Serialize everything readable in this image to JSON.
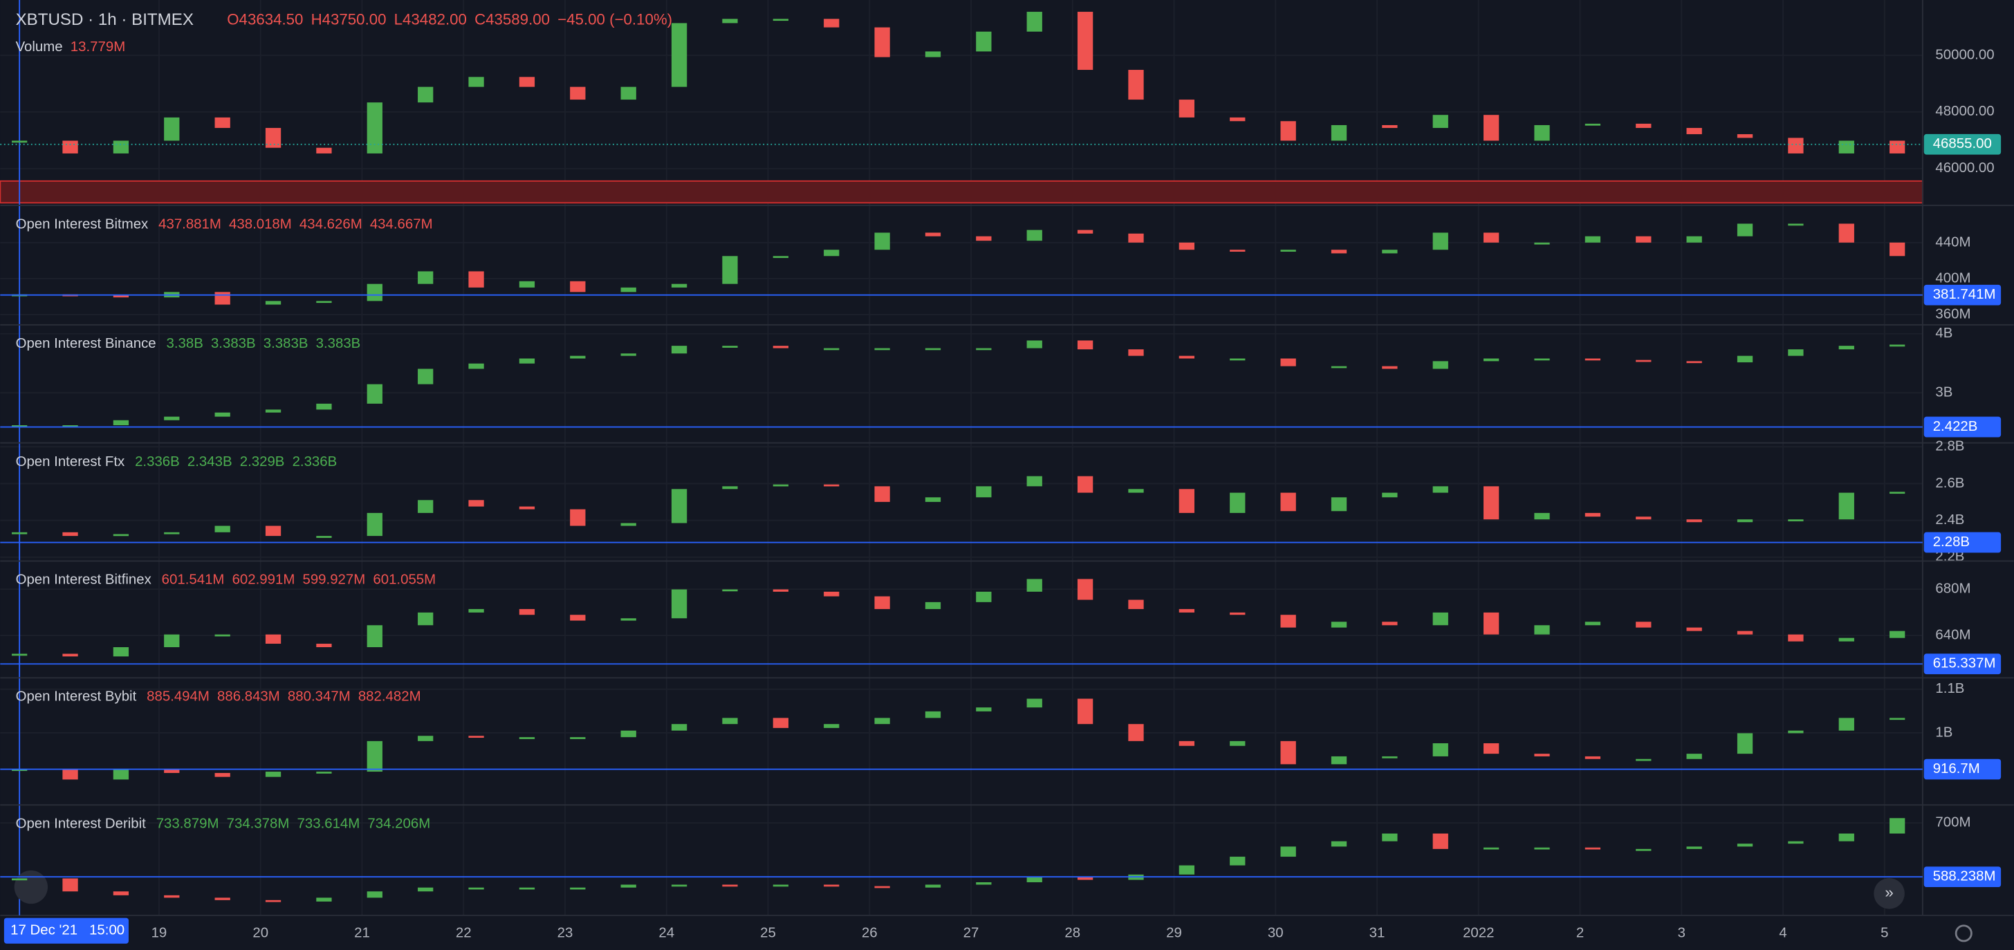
{
  "chart_data": [
    {
      "type": "candle",
      "title": "XBTUSD · 1h · BITMEX",
      "legend": [
        "O43634.50",
        "H43750.00",
        "L43482.00",
        "C43589.00",
        "−45.00 (−0.10%)"
      ],
      "legend_color": "#ef5350",
      "volume_label": "Volume",
      "volume_value": "13.779M",
      "x": [
        0,
        12,
        24,
        36,
        48,
        60,
        72,
        84,
        96,
        108,
        120,
        132,
        144,
        156,
        168,
        180,
        192,
        204,
        216,
        228,
        240,
        252,
        264,
        276,
        288,
        300,
        312,
        324,
        336,
        348,
        360,
        372,
        384,
        396,
        408,
        420,
        432,
        444
      ],
      "values": [
        46950,
        46500,
        46950,
        47770,
        47400,
        46700,
        46500,
        48300,
        48850,
        49200,
        48850,
        48400,
        48850,
        51100,
        51250,
        51250,
        50950,
        49900,
        50100,
        50800,
        51500,
        49450,
        48400,
        47770,
        47640,
        46950,
        47500,
        47400,
        47860,
        46950,
        47500,
        47550,
        47400,
        47180,
        47050,
        46500,
        46950,
        46500
      ],
      "xlim": [
        0,
        450
      ],
      "ylim": [
        44700,
        51950
      ],
      "yticks": [
        {
          "value": 46000,
          "label": "46000.00"
        },
        {
          "value": 48000,
          "label": "48000.00"
        },
        {
          "value": 50000,
          "label": "50000.00"
        }
      ],
      "last_price": {
        "value": 46855,
        "label": "46855.00"
      },
      "up_color": "#4caf50",
      "down_color": "#ef5350"
    },
    {
      "type": "candle",
      "title": "Open Interest Bitmex",
      "legend": [
        "437.881M",
        "438.018M",
        "434.626M",
        "434.667M"
      ],
      "legend_color": "#ef5350",
      "x": [
        0,
        12,
        24,
        36,
        48,
        60,
        72,
        84,
        96,
        108,
        120,
        132,
        144,
        156,
        168,
        180,
        192,
        204,
        216,
        228,
        240,
        252,
        264,
        276,
        288,
        300,
        312,
        324,
        336,
        348,
        360,
        372,
        384,
        396,
        408,
        420,
        432,
        444
      ],
      "values": [
        381.4,
        381,
        378,
        384,
        370,
        374,
        374,
        393,
        407,
        389,
        396,
        384,
        389,
        393,
        424,
        424,
        431,
        450,
        446,
        441,
        453,
        449,
        439,
        431,
        429,
        431,
        427,
        431,
        450,
        439,
        439,
        446,
        439,
        446,
        460,
        460,
        439,
        424
      ],
      "xlim": [
        0,
        450
      ],
      "ylim": [
        348.6,
        481.4
      ],
      "yticks": [
        {
          "value": 360,
          "label": "360M"
        },
        {
          "value": 400,
          "label": "400M"
        },
        {
          "value": 440,
          "label": "440M"
        }
      ],
      "ref_line": {
        "value": 381.741,
        "label": "381.741M"
      },
      "up_color": "#4caf50",
      "down_color": "#ef5350"
    },
    {
      "type": "candle",
      "title": "Open Interest Binance",
      "legend": [
        "3.38B",
        "3.383B",
        "3.383B",
        "3.383B"
      ],
      "legend_color": "#4caf50",
      "x": [
        0,
        12,
        24,
        36,
        48,
        60,
        72,
        84,
        96,
        108,
        120,
        132,
        144,
        156,
        168,
        180,
        192,
        204,
        216,
        228,
        240,
        252,
        264,
        276,
        288,
        300,
        312,
        324,
        336,
        348,
        360,
        372,
        384,
        396,
        408,
        420,
        432,
        444
      ],
      "values": [
        2.435,
        2.435,
        2.52,
        2.58,
        2.65,
        2.7,
        2.8,
        3.13,
        3.39,
        3.48,
        3.565,
        3.61,
        3.65,
        3.78,
        3.78,
        3.74,
        3.74,
        3.74,
        3.74,
        3.74,
        3.87,
        3.72,
        3.61,
        3.565,
        3.565,
        3.435,
        3.435,
        3.39,
        3.52,
        3.565,
        3.565,
        3.54,
        3.52,
        3.5,
        3.61,
        3.72,
        3.78,
        3.8
      ],
      "xlim": [
        0,
        450
      ],
      "ylim": [
        2.152,
        4.152
      ],
      "yticks": [
        {
          "value": 3,
          "label": "3B"
        },
        {
          "value": 4,
          "label": "4B"
        }
      ],
      "ref_line": {
        "value": 2.422,
        "label": "2.422B"
      },
      "up_color": "#4caf50",
      "down_color": "#ef5350"
    },
    {
      "type": "candle",
      "title": "Open Interest Ftx",
      "legend": [
        "2.336B",
        "2.343B",
        "2.329B",
        "2.336B"
      ],
      "legend_color": "#4caf50",
      "x": [
        0,
        12,
        24,
        36,
        48,
        60,
        72,
        84,
        96,
        108,
        120,
        132,
        144,
        156,
        168,
        180,
        192,
        204,
        216,
        228,
        240,
        252,
        264,
        276,
        288,
        300,
        312,
        324,
        336,
        348,
        360,
        372,
        384,
        396,
        408,
        420,
        432,
        444
      ],
      "values": [
        2.33,
        2.31,
        2.32,
        2.33,
        2.365,
        2.31,
        2.31,
        2.435,
        2.505,
        2.47,
        2.455,
        2.365,
        2.38,
        2.565,
        2.58,
        2.59,
        2.58,
        2.495,
        2.52,
        2.58,
        2.635,
        2.545,
        2.565,
        2.435,
        2.545,
        2.445,
        2.52,
        2.545,
        2.58,
        2.4,
        2.435,
        2.415,
        2.4,
        2.385,
        2.4,
        2.4,
        2.545,
        2.55
      ],
      "xlim": [
        0,
        450
      ],
      "ylim": [
        2.179,
        2.821
      ],
      "yticks": [
        {
          "value": 2.2,
          "label": "2.2B"
        },
        {
          "value": 2.4,
          "label": "2.4B"
        },
        {
          "value": 2.6,
          "label": "2.6B"
        },
        {
          "value": 2.8,
          "label": "2.8B"
        }
      ],
      "ref_line": {
        "value": 2.28,
        "label": "2.28B"
      },
      "up_color": "#4caf50",
      "down_color": "#ef5350"
    },
    {
      "type": "candle",
      "title": "Open Interest Bitfinex",
      "legend": [
        "601.541M",
        "602.991M",
        "599.927M",
        "601.055M"
      ],
      "legend_color": "#ef5350",
      "x": [
        0,
        12,
        24,
        36,
        48,
        60,
        72,
        84,
        96,
        108,
        120,
        132,
        144,
        156,
        168,
        180,
        192,
        204,
        216,
        228,
        240,
        252,
        264,
        276,
        288,
        300,
        312,
        324,
        336,
        348,
        360,
        372,
        384,
        396,
        408,
        420,
        432,
        444
      ],
      "values": [
        623.3,
        621,
        629,
        640,
        640,
        632,
        629,
        648,
        659,
        662,
        657,
        652,
        654,
        679,
        679,
        677,
        673,
        662,
        668,
        677,
        688,
        670,
        662,
        659,
        657,
        646,
        651,
        648,
        659,
        640,
        648,
        651,
        646,
        643,
        640,
        634,
        637,
        643
      ],
      "xlim": [
        0,
        450
      ],
      "ylim": [
        603.3,
        704.4
      ],
      "yticks": [
        {
          "value": 640,
          "label": "640M"
        },
        {
          "value": 680,
          "label": "680M"
        }
      ],
      "ref_line": {
        "value": 615.337,
        "label": "615.337M"
      },
      "up_color": "#4caf50",
      "down_color": "#ef5350"
    },
    {
      "type": "candle",
      "title": "Open Interest Bybit",
      "legend": [
        "885.494M",
        "886.843M",
        "880.347M",
        "882.482M"
      ],
      "legend_color": "#ef5350",
      "x": [
        0,
        12,
        24,
        36,
        48,
        60,
        72,
        84,
        96,
        108,
        120,
        132,
        144,
        156,
        168,
        180,
        192,
        204,
        216,
        228,
        240,
        252,
        264,
        276,
        288,
        300,
        312,
        324,
        336,
        348,
        360,
        372,
        384,
        396,
        408,
        420,
        432,
        444
      ],
      "values": [
        0.915,
        0.891,
        0.915,
        0.906,
        0.897,
        0.909,
        0.909,
        0.979,
        0.991,
        0.988,
        0.988,
        0.988,
        1.003,
        1.018,
        1.032,
        1.009,
        1.018,
        1.032,
        1.047,
        1.056,
        1.076,
        1.018,
        0.979,
        0.968,
        0.979,
        0.926,
        0.944,
        0.944,
        0.974,
        0.95,
        0.944,
        0.938,
        0.938,
        0.95,
        0.997,
        1.003,
        1.032,
        1.032
      ],
      "xlim": [
        0,
        450
      ],
      "ylim": [
        0.835,
        1.126
      ],
      "yticks": [
        {
          "value": 1,
          "label": "1B"
        },
        {
          "value": 1.1,
          "label": "1.1B"
        }
      ],
      "ref_line": {
        "value": 0.9167,
        "label": "916.7M"
      },
      "up_color": "#4caf50",
      "down_color": "#ef5350"
    },
    {
      "type": "candle",
      "title": "Open Interest Deribit",
      "legend": [
        "733.879M",
        "734.378M",
        "733.614M",
        "734.206M"
      ],
      "legend_color": "#4caf50",
      "x": [
        0,
        12,
        24,
        36,
        48,
        60,
        72,
        84,
        96,
        108,
        120,
        132,
        144,
        156,
        168,
        180,
        192,
        204,
        216,
        228,
        240,
        252,
        264,
        276,
        288,
        300,
        312,
        324,
        336,
        348,
        360,
        372,
        384,
        396,
        408,
        420,
        432,
        444
      ],
      "values": [
        583,
        556,
        548,
        543,
        538,
        535,
        543,
        556,
        564,
        564,
        564,
        564,
        570,
        570,
        567,
        570,
        567,
        564,
        570,
        575,
        586,
        580,
        591,
        610,
        628,
        649,
        660,
        676,
        644,
        647,
        647,
        644,
        644,
        649,
        655,
        660,
        676,
        708
      ],
      "xlim": [
        0,
        450
      ],
      "ylim": [
        508.4,
        737.3
      ],
      "yticks": [
        {
          "value": 700,
          "label": "700M"
        }
      ],
      "ref_line": {
        "value": 588.238,
        "label": "588.238M"
      },
      "up_color": "#4caf50",
      "down_color": "#ef5350",
      "x_start_label": "17 Dec '21   15:00",
      "xticks": [
        {
          "value": 33,
          "label": "19"
        },
        {
          "value": 57,
          "label": "20"
        },
        {
          "value": 81,
          "label": "21"
        },
        {
          "value": 105,
          "label": "22"
        },
        {
          "value": 129,
          "label": "23"
        },
        {
          "value": 153,
          "label": "24"
        },
        {
          "value": 177,
          "label": "25"
        },
        {
          "value": 201,
          "label": "26"
        },
        {
          "value": 225,
          "label": "27"
        },
        {
          "value": 249,
          "label": "28"
        },
        {
          "value": 273,
          "label": "29"
        },
        {
          "value": 297,
          "label": "30"
        },
        {
          "value": 321,
          "label": "31"
        },
        {
          "value": 345,
          "label": "2022"
        },
        {
          "value": 369,
          "label": "2"
        },
        {
          "value": 393,
          "label": "3"
        },
        {
          "value": 417,
          "label": "4"
        },
        {
          "value": 441,
          "label": "5"
        }
      ]
    }
  ]
}
